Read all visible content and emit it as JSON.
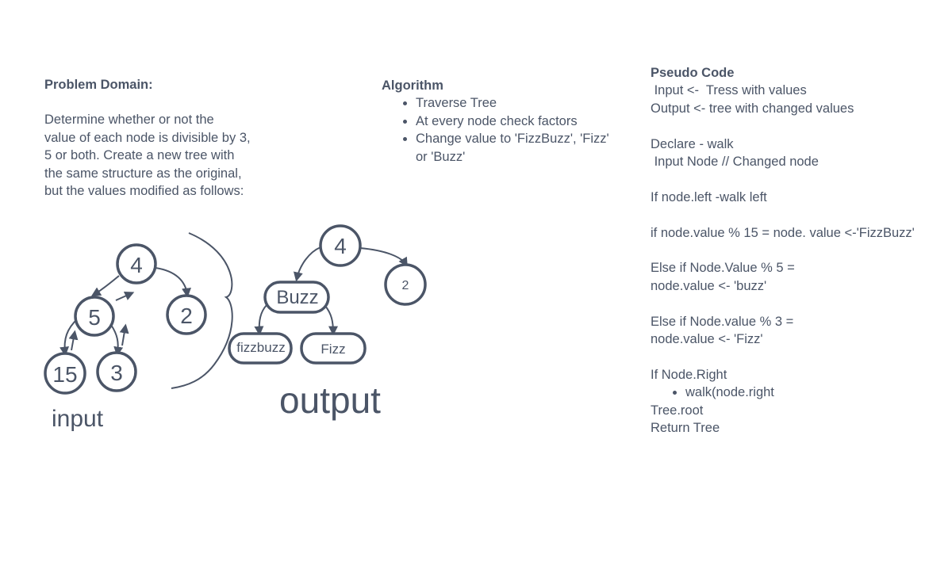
{
  "problem": {
    "heading": "Problem Domain:",
    "lines": [
      "Determine whether or not the",
      "value of each node is divisible by 3,",
      "5 or both. Create a new tree with",
      "the same structure as the original,",
      "but the values modified as follows:"
    ]
  },
  "algorithm": {
    "heading": "Algorithm",
    "items": [
      "Traverse Tree",
      "At every node check factors",
      "Change value to 'FizzBuzz', 'Fizz' or 'Buzz'"
    ]
  },
  "pseudo": {
    "heading": "Pseudo Code",
    "lines": [
      " Input <-  Tress with values",
      "Output <- tree with changed values",
      "",
      "Declare - walk",
      " Input Node // Changed node",
      "",
      "If node.left -walk left",
      "",
      "if node.value % 15 = node. value <-'FizzBuzz'",
      "",
      "Else if Node.Value % 5 =",
      "node.value <- 'buzz'",
      "",
      "Else if Node.value % 3 =",
      "node.value <- 'Fizz'",
      "",
      "If Node.Right"
    ],
    "bullet": "walk(node.right",
    "tail": [
      "Tree.root",
      "Return Tree"
    ]
  },
  "input_tree": {
    "label": "input",
    "nodes": [
      "4",
      "5",
      "2",
      "15",
      "3"
    ]
  },
  "output_tree": {
    "label": "output",
    "nodes": [
      "4",
      "Buzz",
      "2",
      "fizzbuzz",
      "Fizz"
    ]
  },
  "colors": {
    "ink": "#4b5567",
    "background": "#ffffff"
  }
}
